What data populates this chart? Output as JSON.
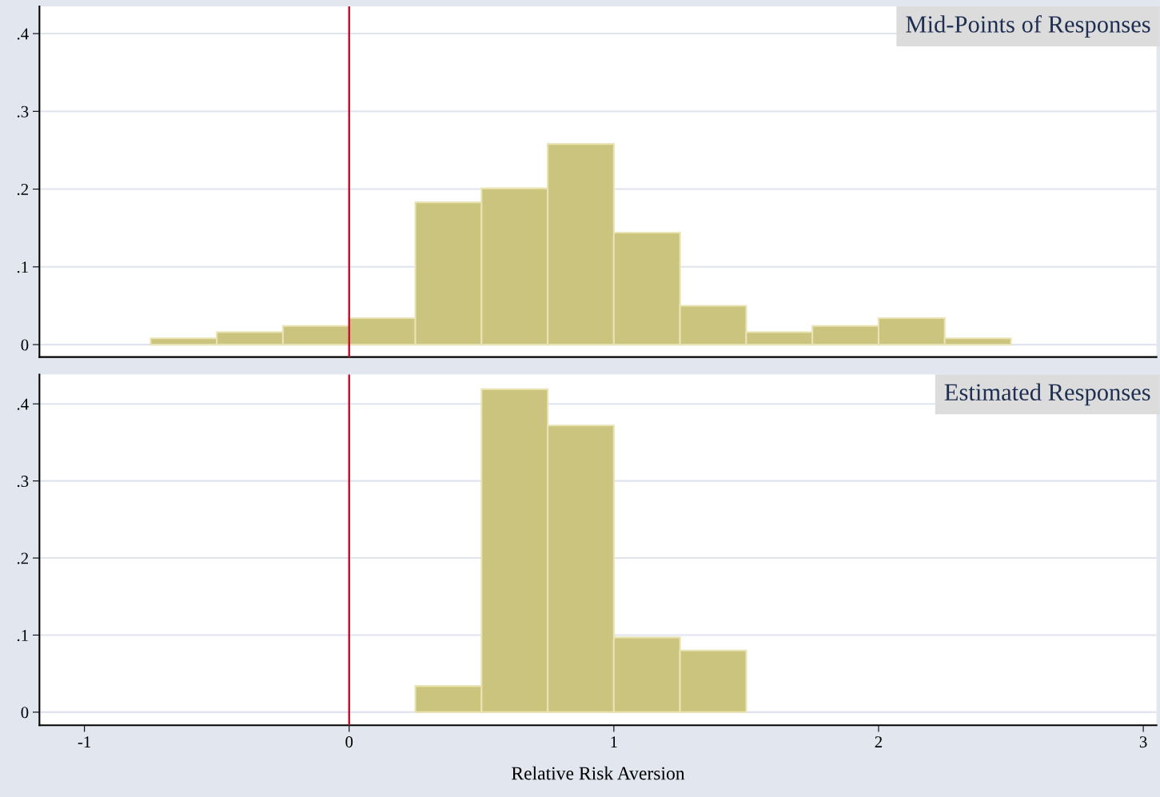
{
  "chart_data": [
    {
      "type": "histogram",
      "title": "Mid-Points of Responses",
      "bins": [
        -0.75,
        -0.5,
        -0.25,
        0,
        0.25,
        0.5,
        0.75,
        1,
        1.25,
        1.5,
        1.75,
        2,
        2.25,
        2.5
      ],
      "values": [
        0.008,
        0.016,
        0.024,
        0.034,
        0.183,
        0.201,
        0.258,
        0.144,
        0.05,
        0.016,
        0.024,
        0.034,
        0.008
      ],
      "color": "#cbc47e",
      "xlim": [
        -1.17,
        3.05
      ],
      "ylim": [
        -0.016,
        0.435
      ],
      "yticks": [
        {
          "value": 0,
          "label": "0"
        },
        {
          "value": 0.1,
          "label": ".1"
        },
        {
          "value": 0.2,
          "label": ".2"
        },
        {
          "value": 0.3,
          "label": ".3"
        },
        {
          "value": 0.4,
          "label": ".4"
        }
      ],
      "tick_labels": "y",
      "grid": "y",
      "ref_lines": [
        {
          "axis": "x",
          "value": 0,
          "color": "#c8102e"
        }
      ]
    },
    {
      "type": "histogram",
      "title": "Estimated Responses",
      "xlabel": "Relative Risk Aversion",
      "bins": [
        0.25,
        0.5,
        0.75,
        1,
        1.25,
        1.5
      ],
      "values": [
        0.034,
        0.419,
        0.372,
        0.097,
        0.08
      ],
      "color": "#cbc47e",
      "xlim": [
        -1.17,
        3.05
      ],
      "ylim": [
        -0.017,
        0.438
      ],
      "xticks": [
        -1,
        0,
        1,
        2,
        3
      ],
      "yticks": [
        {
          "value": 0,
          "label": "0"
        },
        {
          "value": 0.1,
          "label": ".1"
        },
        {
          "value": 0.2,
          "label": ".2"
        },
        {
          "value": 0.3,
          "label": ".3"
        },
        {
          "value": 0.4,
          "label": ".4"
        }
      ],
      "grid": "y",
      "ref_lines": [
        {
          "axis": "x",
          "value": 0,
          "color": "#c8102e"
        }
      ]
    }
  ]
}
